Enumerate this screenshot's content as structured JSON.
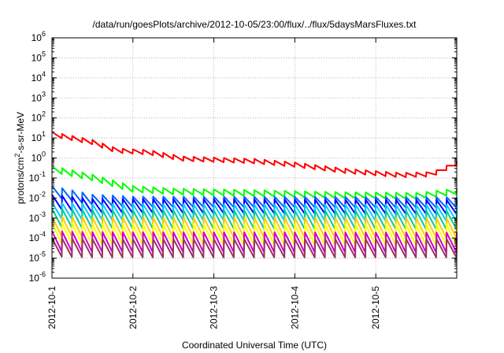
{
  "chart_data": {
    "type": "line",
    "title": "/data/run/goesPlots/archive/2012-10-05/23:00/flux/../flux/5daysMarsFluxes.txt",
    "xlabel": "Coordinated Universal Time (UTC)",
    "ylabel": {
      "base": "protons/cm",
      "sup": "2",
      "rest": "-s-sr-MeV"
    },
    "y_scale": "log",
    "ylim_exponents": [
      -6,
      6
    ],
    "ytick_exponents": [
      -6,
      -5,
      -4,
      -3,
      -2,
      -1,
      0,
      1,
      2,
      3,
      4,
      5,
      6
    ],
    "ytick_base": "10",
    "xlim_days": [
      0,
      5
    ],
    "xticks": [
      "2012-10-1",
      "2012-10-2",
      "2012-10-3",
      "2012-10-4",
      "2012-10-5"
    ],
    "grid": true,
    "legend": "none",
    "sawtooth_cycles": 40,
    "series": [
      {
        "color": "#ff0000",
        "top": [
          [
            0,
            20
          ],
          [
            0.5,
            8
          ],
          [
            0.8,
            3
          ],
          [
            1.2,
            2.5
          ],
          [
            1.6,
            1.2
          ],
          [
            2.5,
            0.9
          ],
          [
            3,
            0.6
          ],
          [
            3.6,
            0.3
          ],
          [
            4.3,
            0.18
          ],
          [
            4.7,
            0.2
          ],
          [
            5,
            0.7
          ]
        ],
        "drop": 0.6
      },
      {
        "color": "#00ff00",
        "top": [
          [
            0,
            0.4
          ],
          [
            0.5,
            0.15
          ],
          [
            1,
            0.04
          ],
          [
            1.5,
            0.03
          ],
          [
            2.5,
            0.025
          ],
          [
            3.5,
            0.02
          ],
          [
            4.5,
            0.018
          ],
          [
            5,
            0.03
          ]
        ],
        "drop": 0.5
      },
      {
        "color": "#0066ff",
        "top": [
          [
            0,
            0.04
          ],
          [
            0.5,
            0.015
          ],
          [
            1,
            0.012
          ],
          [
            5,
            0.011
          ]
        ],
        "drop": 0.3
      },
      {
        "color": "#0000ff",
        "top": [
          [
            0,
            0.015
          ],
          [
            0.5,
            0.009
          ],
          [
            5,
            0.008
          ]
        ],
        "drop": 0.2
      },
      {
        "color": "#00ccff",
        "top": [
          [
            0,
            0.006
          ],
          [
            0.5,
            0.005
          ],
          [
            5,
            0.0045
          ]
        ],
        "drop": 0.16
      },
      {
        "color": "#00cc99",
        "top": [
          [
            0,
            0.003
          ],
          [
            0.5,
            0.0025
          ],
          [
            5,
            0.0023
          ]
        ],
        "drop": 0.12
      },
      {
        "color": "#ffcc00",
        "top": [
          [
            0,
            0.0012
          ],
          [
            0.5,
            0.0011
          ],
          [
            5,
            0.001
          ]
        ],
        "drop": 0.1
      },
      {
        "color": "#ffff00",
        "top": [
          [
            0,
            0.0006
          ],
          [
            0.5,
            0.0005
          ],
          [
            5,
            0.00048
          ]
        ],
        "drop": 0.09
      },
      {
        "color": "#cc00cc",
        "top": [
          [
            0,
            0.00022
          ],
          [
            0.5,
            0.0002
          ],
          [
            5,
            0.00019
          ]
        ],
        "drop": 0.1
      },
      {
        "color": "#993366",
        "top": [
          [
            0,
            0.0001
          ],
          [
            0.5,
            9e-05
          ],
          [
            5,
            9e-05
          ]
        ],
        "drop": 0.12
      }
    ]
  }
}
